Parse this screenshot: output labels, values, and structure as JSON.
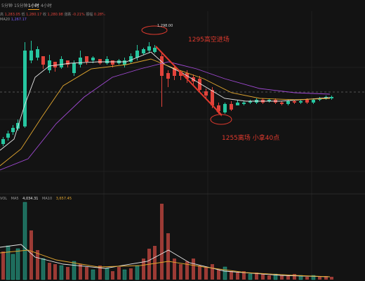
{
  "timeframes": [
    {
      "label": "5分钟",
      "active": false
    },
    {
      "label": "15分钟",
      "active": false
    },
    {
      "label": "1小时",
      "active": true
    },
    {
      "label": "4小时",
      "active": false
    }
  ],
  "ohlc": {
    "open_label": "高",
    "open_value": "1,283.05",
    "low_label": "低",
    "low_value": "1,280.17",
    "close_label": "收",
    "close_value": "1,280.98",
    "change_label": "涨跌",
    "change_value": "-0.21%",
    "amp_label": "振幅",
    "amp_value": "0.28%"
  },
  "ma_legend": {
    "label": "MA20",
    "value": "1,267.17"
  },
  "volume_legend": {
    "vol_label": "VOL",
    "ma5_label": "MA5",
    "ma5_value": "4,034.31",
    "ma10_label": "MA10",
    "ma10_value": "3,657.45"
  },
  "price_marker": "1,298.00",
  "annotations": {
    "entry": "1295高空进场",
    "exit": "1255离场  小拿40点"
  },
  "colors": {
    "up": "#26c6a0",
    "down": "#e2433b",
    "ma_fast": "#e8e8e8",
    "ma_mid": "#e3a72f",
    "ma_slow": "#a24ad6",
    "annotation": "#e03a2e",
    "vol_up": "#1f6b5c",
    "vol_down": "#9c3b35"
  }
}
